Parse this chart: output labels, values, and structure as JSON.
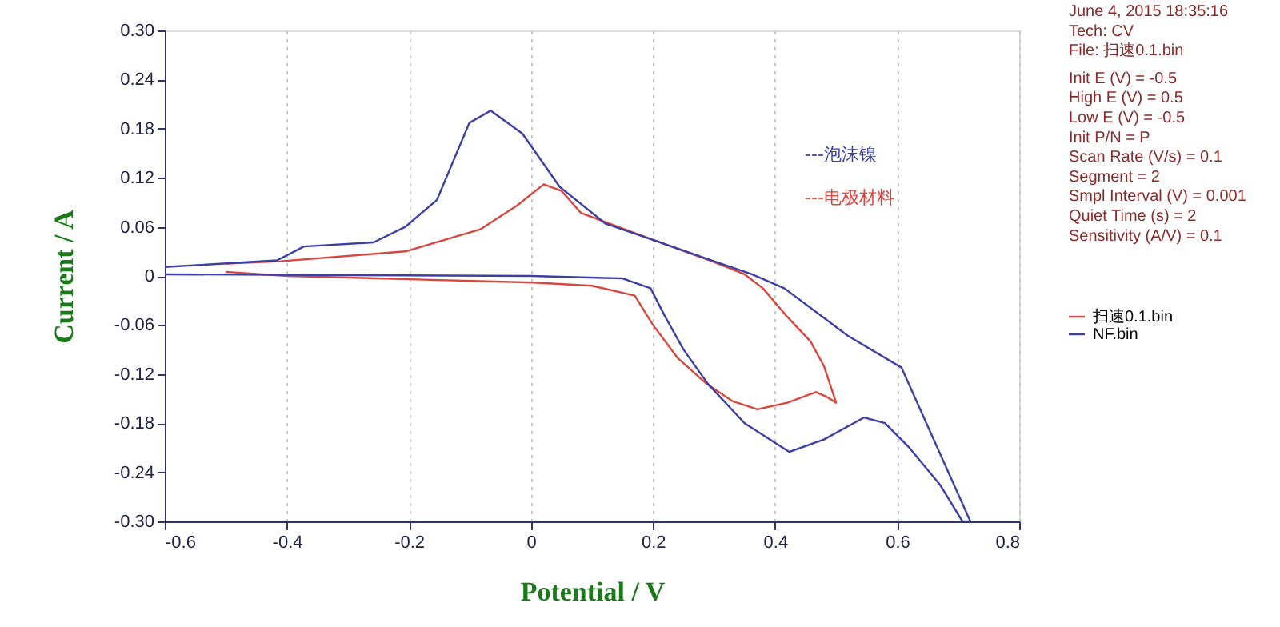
{
  "chart_data": {
    "type": "line",
    "xlabel": "Potential / V",
    "ylabel": "Current / A",
    "xlim": [
      -0.6,
      0.8
    ],
    "xticks": [
      -0.6,
      -0.4,
      -0.2,
      0,
      0.2,
      0.4,
      0.6,
      0.8
    ],
    "ylim": [
      -0.3,
      0.3
    ],
    "yticks": [
      {
        "value": -0.3,
        "label": "-0.30"
      },
      -0.24,
      -0.18,
      -0.12,
      -0.06,
      0,
      0.06,
      0.12,
      0.18,
      0.24,
      {
        "value": 0.3,
        "label": "0.30"
      }
    ],
    "grid": "x",
    "legend": "right",
    "line_style": "solid",
    "marker": "none",
    "series": [
      {
        "name": "扫速0.1.bin",
        "color": "#d9463e",
        "x": [
          -0.5,
          -0.41,
          -0.206,
          -0.083,
          -0.023,
          0.021,
          0.05,
          0.082,
          0.2,
          0.3,
          0.35,
          0.38,
          0.42,
          0.458,
          0.48,
          0.5,
          0.485,
          0.467,
          0.42,
          0.371,
          0.33,
          0.288,
          0.24,
          0.2,
          0.17,
          0.1,
          0.004,
          -0.2,
          -0.4,
          -0.5
        ],
        "values": [
          0.015,
          0.018,
          0.03,
          0.057,
          0.086,
          0.112,
          0.104,
          0.077,
          0.044,
          0.017,
          0.002,
          -0.015,
          -0.05,
          -0.08,
          -0.11,
          -0.155,
          -0.148,
          -0.142,
          -0.155,
          -0.163,
          -0.153,
          -0.132,
          -0.1,
          -0.06,
          -0.024,
          -0.012,
          -0.008,
          -0.004,
          0.0,
          0.005
        ]
      },
      {
        "name": "NF.bin",
        "color": "#3b3fa6",
        "x": [
          -0.6,
          -0.416,
          -0.372,
          -0.258,
          -0.206,
          -0.154,
          -0.101,
          -0.066,
          -0.014,
          0.047,
          0.122,
          0.2,
          0.3,
          0.362,
          0.415,
          0.519,
          0.607,
          0.66,
          0.72,
          0.707,
          0.67,
          0.62,
          0.58,
          0.546,
          0.48,
          0.423,
          0.35,
          0.29,
          0.25,
          0.22,
          0.196,
          0.15,
          0.0,
          -0.3,
          -0.6
        ],
        "values": [
          0.011,
          0.019,
          0.036,
          0.041,
          0.06,
          0.093,
          0.187,
          0.202,
          0.174,
          0.109,
          0.064,
          0.044,
          0.018,
          0.002,
          -0.015,
          -0.073,
          -0.112,
          -0.2,
          -0.3,
          -0.3,
          -0.255,
          -0.21,
          -0.18,
          -0.173,
          -0.2,
          -0.215,
          -0.18,
          -0.132,
          -0.09,
          -0.05,
          -0.015,
          -0.003,
          0.0,
          0.001,
          0.002
        ]
      }
    ],
    "annotations": [
      "---泡沫镍",
      "---电极材料",
      "June 4, 2015   18:35:16",
      "Tech: CV",
      "File: 扫速0.1.bin",
      "Init E (V) = -0.5",
      "High E (V) = 0.5",
      "Low E (V) = -0.5",
      "Init P/N = P",
      "Scan Rate (V/s) = 0.1",
      "Segment = 2",
      "Smpl Interval (V) = 0.001",
      "Quiet Time (s) = 2",
      "Sensitivity (A/V) = 0.1"
    ]
  }
}
